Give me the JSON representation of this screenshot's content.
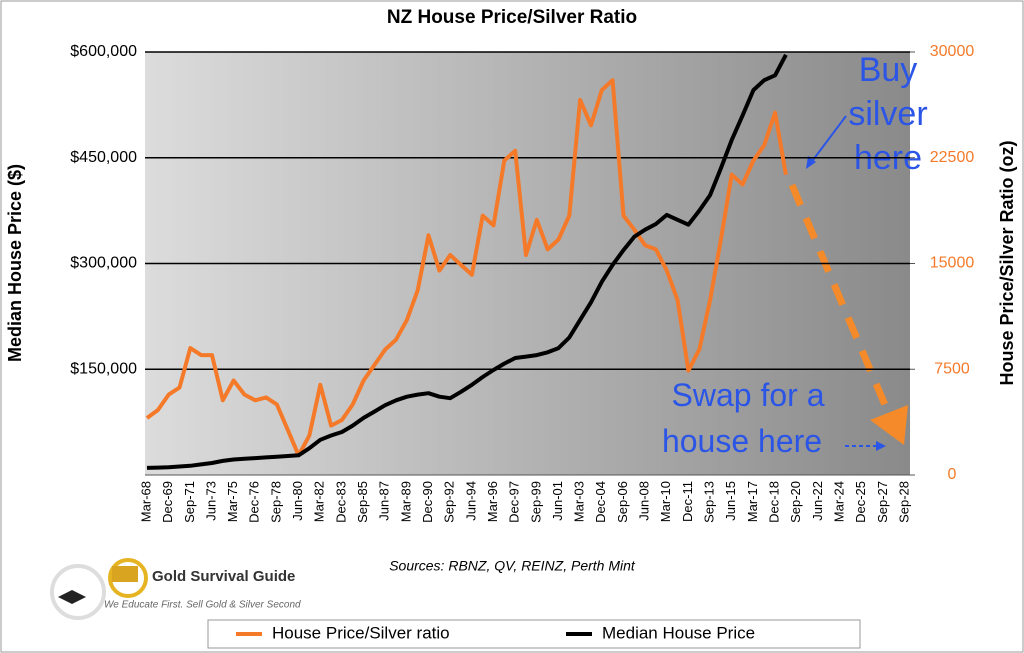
{
  "chart_data": {
    "type": "line",
    "title": "NZ House Price/Silver Ratio",
    "y_label": "Median House Price ($)",
    "y2_label": "House Price/Silver Ratio (oz)",
    "categories": [
      "Mar-68",
      null,
      "Dec-69",
      null,
      "Sep-71",
      null,
      "Jun-73",
      null,
      "Mar-75",
      null,
      "Dec-76",
      null,
      "Sep-78",
      null,
      "Jun-80",
      null,
      "Mar-82",
      null,
      "Dec-83",
      null,
      "Sep-85",
      null,
      "Jun-87",
      null,
      "Mar-89",
      null,
      "Dec-90",
      null,
      "Sep-92",
      null,
      "Jun-94",
      null,
      "Mar-96",
      null,
      "Dec-97",
      null,
      "Sep-99",
      null,
      "Jun-01",
      null,
      "Mar-03",
      null,
      "Dec-04",
      null,
      "Sep-06",
      null,
      "Jun-08",
      null,
      "Mar-10",
      null,
      "Dec-11",
      null,
      "Sep-13",
      null,
      "Jun-15",
      null,
      "Mar-17",
      null,
      "Dec-18",
      null,
      "Sep-20",
      null,
      "Jun-22",
      null,
      "Mar-24",
      null,
      "Dec-25",
      null,
      "Sep-27",
      null,
      "Sep-28"
    ],
    "series": [
      {
        "name": "House Price/Silver ratio",
        "color": "#f47a2a",
        "axis": "y2",
        "values": [
          4040,
          4600,
          5700,
          6200,
          9000,
          8500,
          8500,
          5300,
          6700,
          5700,
          5300,
          5500,
          5000,
          3200,
          1400,
          2800,
          6400,
          3500,
          3900,
          5000,
          6700,
          7800,
          8900,
          9600,
          11000,
          13100,
          17000,
          14500,
          15600,
          14900,
          14200,
          18400,
          17700,
          22300,
          23000,
          15600,
          18100,
          16000,
          16700,
          18400,
          26600,
          24800,
          27300,
          28000,
          18400,
          17400,
          16300,
          16000,
          14500,
          12400,
          7400,
          8900,
          12400,
          16700,
          21300,
          20600,
          22300,
          23400,
          25700,
          21300,
          null,
          null,
          null,
          null,
          null,
          null,
          null,
          null,
          null,
          null,
          null
        ]
      },
      {
        "name": "Median House Price",
        "color": "#000000",
        "values": [
          10000,
          10500,
          11000,
          12000,
          13000,
          15000,
          17000,
          20000,
          22000,
          23000,
          24000,
          25000,
          26000,
          27000,
          28000,
          38000,
          50000,
          56000,
          61000,
          70000,
          81000,
          90000,
          99000,
          106000,
          111000,
          114000,
          116000,
          111000,
          109000,
          118000,
          128000,
          139000,
          149000,
          158000,
          166000,
          168000,
          170000,
          174000,
          180000,
          195000,
          220000,
          245000,
          274000,
          298000,
          319000,
          338000,
          348000,
          356000,
          369000,
          362000,
          355000,
          375000,
          397000,
          435000,
          475000,
          510000,
          546000,
          560000,
          567000,
          596000,
          null,
          null,
          null,
          null,
          null,
          null,
          null,
          null,
          null,
          null,
          null
        ]
      }
    ],
    "ylim": [
      0,
      600000
    ],
    "yticks": [
      {
        "value": 150000,
        "label": "$150,000"
      },
      {
        "value": 300000,
        "label": "$300,000"
      },
      {
        "value": 450000,
        "label": "$450,000"
      },
      {
        "value": 600000,
        "label": "$600,000"
      }
    ],
    "y2lim": [
      0,
      30000
    ],
    "y2ticks": [
      0,
      7500,
      15000,
      22500,
      30000
    ],
    "grid": true,
    "legend": "bottom",
    "annotations": [
      "Buy silver here",
      "Swap for a house here",
      "Sources: RBNZ, QV, REINZ, Perth Mint"
    ],
    "logo": {
      "name": "Gold Survival Guide",
      "tagline": "We Educate First. Sell Gold & Silver Second"
    }
  }
}
